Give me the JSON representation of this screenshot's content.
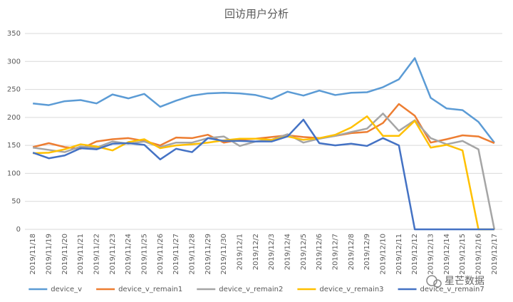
{
  "chart_data": {
    "type": "line",
    "title": "回访用户分析",
    "categories": [
      "2019/11/18",
      "2019/11/19",
      "2019/11/20",
      "2019/11/21",
      "2019/11/22",
      "2019/11/23",
      "2019/11/24",
      "2019/11/25",
      "2019/11/26",
      "2019/11/27",
      "2019/11/28",
      "2019/11/29",
      "2019/11/30",
      "2019/12/1",
      "2019/12/2",
      "2019/12/3",
      "2019/12/4",
      "2019/12/5",
      "2019/12/6",
      "2019/12/7",
      "2019/12/8",
      "2019/12/9",
      "2019/12/10",
      "2019/12/11",
      "2019/12/12",
      "2019/12/13",
      "2019/12/14",
      "2019/12/15",
      "2019/12/16",
      "2019/12/17"
    ],
    "series": [
      {
        "name": "device_v",
        "color": "#5b9bd5",
        "values": [
          225,
          222,
          229,
          231,
          225,
          241,
          234,
          242,
          219,
          230,
          239,
          243,
          244,
          243,
          240,
          233,
          246,
          239,
          248,
          240,
          244,
          245,
          254,
          268,
          306,
          235,
          216,
          213,
          192,
          155
        ]
      },
      {
        "name": "device_v_remain1",
        "color": "#ed7d31",
        "values": [
          147,
          154,
          147,
          144,
          157,
          161,
          163,
          158,
          150,
          164,
          163,
          169,
          155,
          160,
          162,
          165,
          168,
          165,
          163,
          167,
          172,
          174,
          190,
          224,
          203,
          155,
          161,
          168,
          166,
          154
        ]
      },
      {
        "name": "device_v_remain2",
        "color": "#a5a5a5",
        "values": [
          146,
          142,
          138,
          148,
          146,
          157,
          153,
          157,
          147,
          155,
          155,
          163,
          166,
          149,
          157,
          160,
          170,
          155,
          162,
          167,
          174,
          180,
          207,
          176,
          195,
          163,
          152,
          158,
          143,
          0
        ]
      },
      {
        "name": "device_v_remain3",
        "color": "#ffc000",
        "values": [
          136,
          137,
          143,
          152,
          148,
          141,
          156,
          161,
          145,
          150,
          152,
          155,
          159,
          162,
          162,
          160,
          166,
          160,
          163,
          169,
          182,
          202,
          167,
          167,
          194,
          146,
          151,
          141,
          0,
          0
        ]
      },
      {
        "name": "device_v_remain7",
        "color": "#4472c4",
        "values": [
          137,
          127,
          132,
          145,
          143,
          153,
          154,
          151,
          125,
          144,
          138,
          163,
          158,
          158,
          157,
          157,
          166,
          196,
          154,
          150,
          153,
          149,
          163,
          150,
          0,
          0,
          0,
          0,
          0,
          0
        ]
      }
    ],
    "ylim": [
      0,
      350
    ],
    "yticks": [
      0,
      50,
      100,
      150,
      200,
      250,
      300,
      350
    ],
    "grid": true,
    "legend": "bottom"
  },
  "watermark": "星芒数据"
}
